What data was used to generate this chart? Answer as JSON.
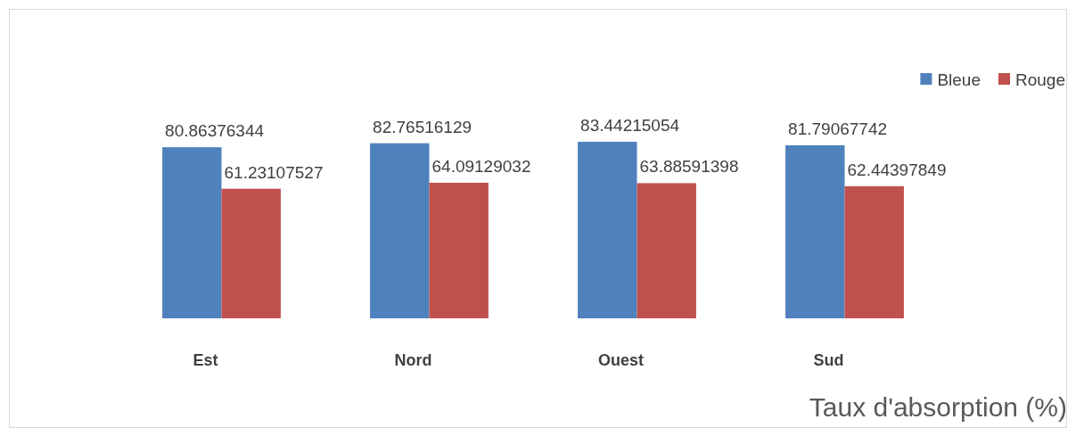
{
  "chart_data": {
    "type": "bar",
    "xlabel": "Taux d'absorption (%)",
    "categories": [
      "Est",
      "Nord",
      "Ouest",
      "Sud"
    ],
    "series": [
      {
        "name": "Bleue",
        "color": "#4f81bd",
        "values": [
          80.86376344,
          82.76516129,
          83.44215054,
          81.79067742
        ]
      },
      {
        "name": "Rouge",
        "color": "#c0504d",
        "values": [
          61.23107527,
          64.09129032,
          63.88591398,
          62.44397849
        ]
      }
    ],
    "data_labels": true,
    "legend": "top right"
  }
}
